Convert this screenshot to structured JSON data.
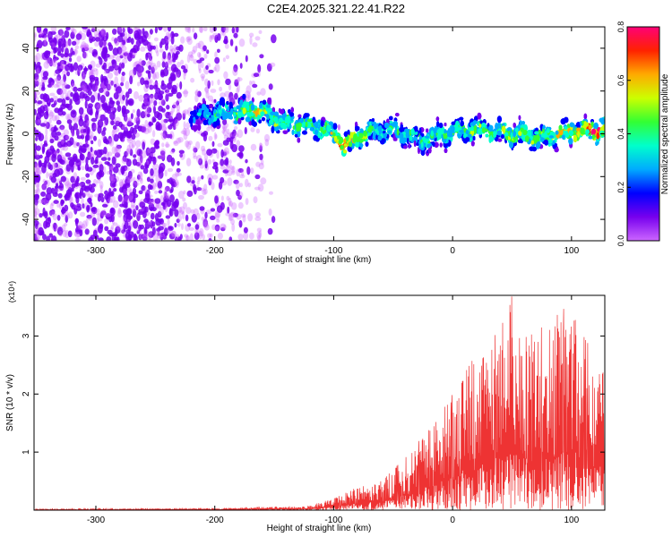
{
  "figure_title": "C2E4.2025.321.22.41.R22",
  "colors": {
    "series": "#ee3333",
    "cmap": [
      "#cc66ff",
      "#7700ee",
      "#0000ff",
      "#00aaff",
      "#00ffcc",
      "#33ff33",
      "#ccff00",
      "#ffaa00",
      "#ff2200",
      "#ff0077"
    ]
  },
  "chart_data": [
    {
      "type": "heatmap",
      "xlabel": "Height of straight line (km)",
      "ylabel": "Frequency (Hz)",
      "xlim": [
        -352,
        128
      ],
      "ylim": [
        -50,
        50
      ],
      "xticks": [
        -300,
        -200,
        -100,
        0,
        100
      ],
      "yticks": [
        -40,
        -20,
        0,
        20,
        40
      ],
      "colorbar": {
        "label": "Normalized spectral amplitude",
        "range": [
          0.0,
          0.8
        ],
        "ticks": [
          "0.0",
          "0.2",
          "0.4",
          "0.6",
          "0.8"
        ]
      },
      "ridge": {
        "x": [
          -220,
          -190,
          -165,
          -140,
          -110,
          -90,
          -70,
          -50,
          -25,
          0,
          25,
          50,
          75,
          100,
          128
        ],
        "center_hz": [
          8,
          10,
          11,
          5,
          3,
          -5,
          1,
          2,
          -3,
          1,
          2,
          0,
          -2,
          1,
          2
        ],
        "peak_amplitude": [
          0.3,
          0.45,
          0.6,
          0.45,
          0.45,
          0.7,
          0.4,
          0.4,
          0.4,
          0.45,
          0.45,
          0.5,
          0.5,
          0.55,
          0.8
        ]
      },
      "noise_region_km": [
        -352,
        -150
      ]
    },
    {
      "type": "line",
      "xlabel": "Height of straight line (km)",
      "ylabel": "SNR (10 * v/v)",
      "yscale_label": "(x10⁴)",
      "xlim": [
        -352,
        128
      ],
      "ylim": [
        0,
        3.7
      ],
      "xticks": [
        -300,
        -200,
        -100,
        0,
        100
      ],
      "yticks": [
        1,
        2,
        3
      ],
      "envelope": {
        "x": [
          -352,
          -200,
          -120,
          -100,
          -80,
          -60,
          -40,
          -20,
          0,
          20,
          40,
          50,
          60,
          80,
          100,
          110,
          128
        ],
        "max": [
          0.02,
          0.03,
          0.08,
          0.2,
          0.4,
          0.5,
          0.9,
          1.4,
          2.0,
          2.7,
          3.1,
          3.7,
          3.0,
          3.2,
          3.6,
          3.0,
          2.4
        ]
      }
    }
  ]
}
